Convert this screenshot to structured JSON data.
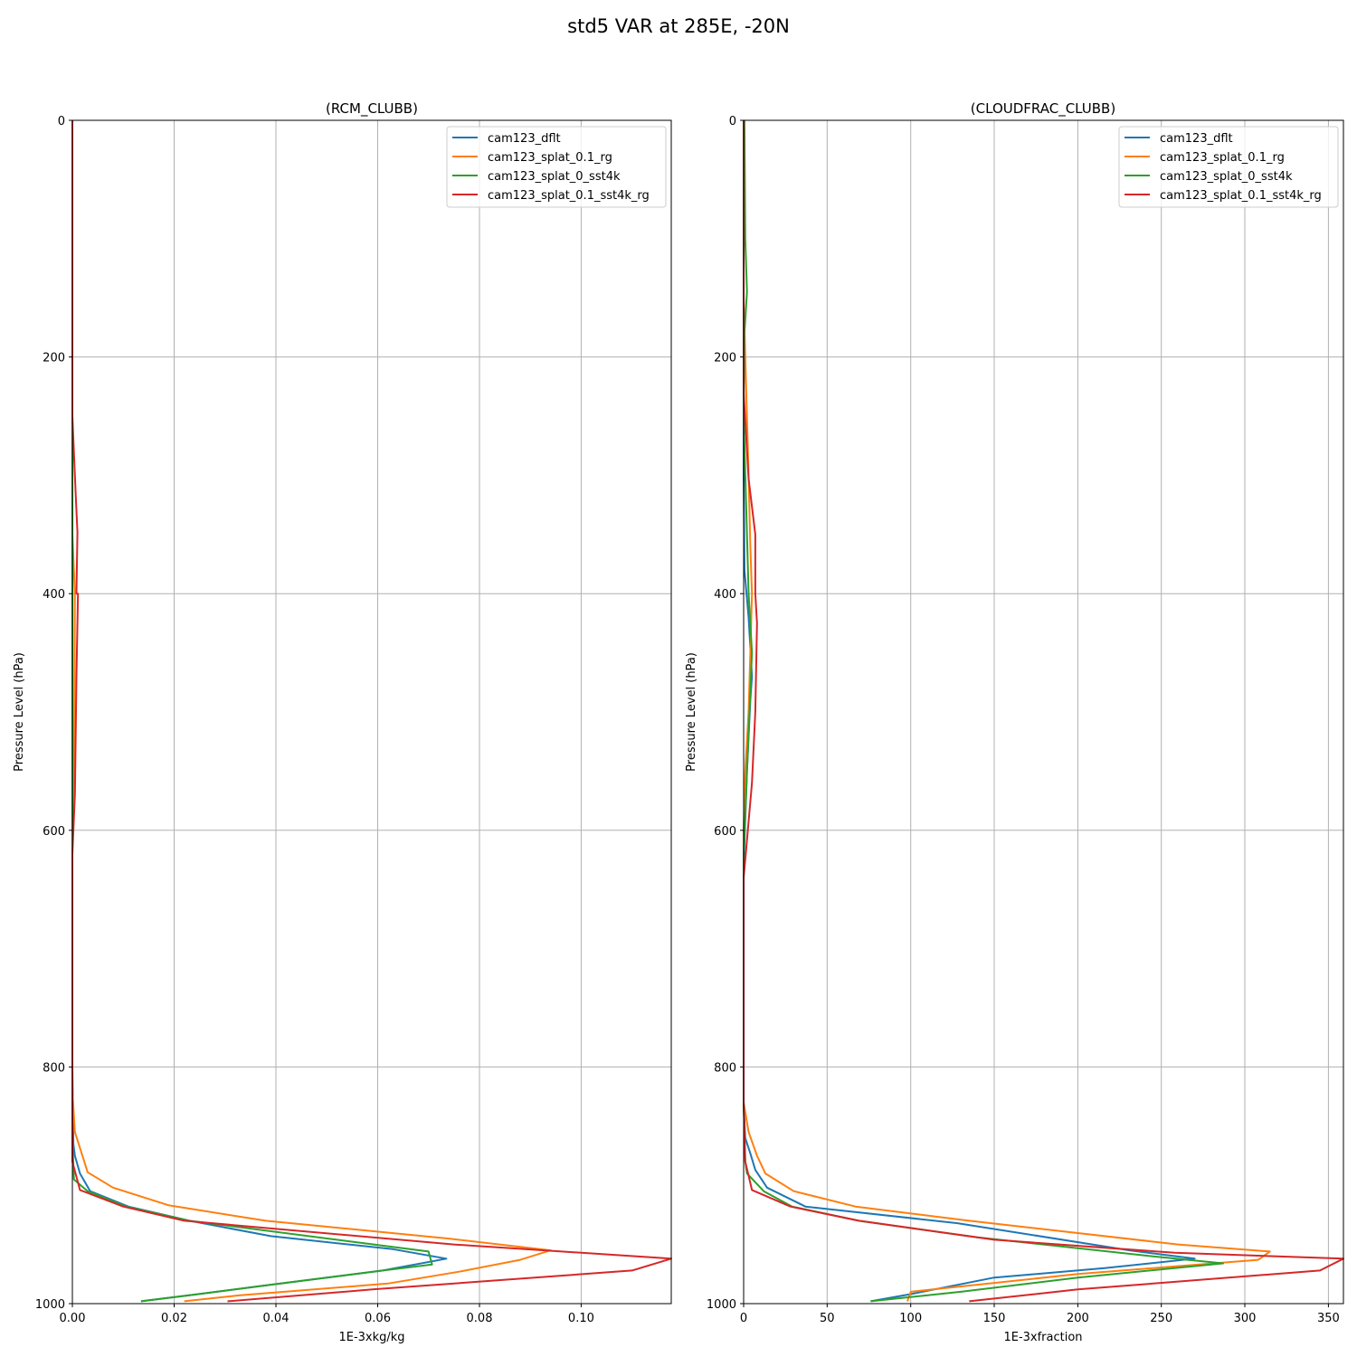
{
  "suptitle": "std5 VAR at 285E, -20N",
  "colors": {
    "cam123_dflt": "#1f77b4",
    "cam123_splat_0.1_rg": "#ff7f0e",
    "cam123_splat_0_sst4k": "#2ca02c",
    "cam123_splat_0.1_sst4k_rg": "#d62728",
    "grid": "#b0b0b0"
  },
  "chart_data": [
    {
      "type": "line",
      "title": "(RCM_CLUBB)",
      "xlabel": "1E-3xkg/kg",
      "ylabel": "Pressure Level (hPa)",
      "xlim": [
        0,
        0.1177
      ],
      "ylim": [
        1000,
        0
      ],
      "xticks": [
        0,
        0.02,
        0.04,
        0.06,
        0.08,
        0.1
      ],
      "xtick_labels": [
        "0.00",
        "0.02",
        "0.04",
        "0.06",
        "0.08",
        "0.10"
      ],
      "yticks": [
        0,
        200,
        400,
        600,
        800,
        1000
      ],
      "ytick_labels": [
        "0",
        "200",
        "400",
        "600",
        "800",
        "1000"
      ],
      "grid": true,
      "legend_position": "top-right",
      "series": [
        {
          "name": "cam123_dflt",
          "x": [
            0,
            0,
            0,
            0,
            0,
            0.0002,
            0.0005,
            0.0015,
            0.0035,
            0.011,
            0.023,
            0.039,
            0.063,
            0.0735,
            0.061,
            0.039,
            0.023,
            0.0135
          ],
          "y": [
            0,
            200,
            400,
            600,
            800,
            865,
            875,
            890,
            905,
            918,
            930,
            943,
            954,
            962,
            972,
            984,
            993,
            998
          ]
        },
        {
          "name": "cam123_splat_0.1_rg",
          "x": [
            0,
            0,
            0,
            0.0005,
            0.0003,
            0,
            0,
            0.0005,
            0.003,
            0.008,
            0.019,
            0.038,
            0.074,
            0.094,
            0.088,
            0.076,
            0.062,
            0.033,
            0.022
          ],
          "y": [
            0,
            200,
            350,
            400,
            570,
            600,
            820,
            855,
            889,
            902,
            917,
            930,
            945,
            955,
            963,
            973,
            983,
            993,
            998
          ]
        },
        {
          "name": "cam123_splat_0_sst4k",
          "x": [
            0,
            0,
            0,
            0,
            0,
            0,
            0.0003,
            0.003,
            0.0105,
            0.023,
            0.07,
            0.0707,
            0.061,
            0.039,
            0.023,
            0.0135
          ],
          "y": [
            0,
            200,
            400,
            600,
            800,
            860,
            895,
            905,
            918,
            930,
            956,
            967,
            972,
            984,
            993,
            998
          ]
        },
        {
          "name": "cam123_splat_0.1_sst4k_rg",
          "x": [
            0,
            0,
            0.0007,
            0.001,
            0.0008,
            0.0011,
            0.0008,
            0.0005,
            0,
            0,
            0.0015,
            0.01,
            0.022,
            0.075,
            0.1177,
            0.11,
            0.059,
            0.0305
          ],
          "y": [
            0,
            250,
            320,
            348,
            400,
            400,
            470,
            570,
            620,
            880,
            904,
            918,
            930,
            950,
            962,
            972,
            988,
            998
          ]
        }
      ]
    },
    {
      "type": "line",
      "title": "(CLOUDFRAC_CLUBB)",
      "xlabel": "1E-3xfraction",
      "ylabel": "Pressure Level (hPa)",
      "xlim": [
        0,
        359
      ],
      "ylim": [
        1000,
        0
      ],
      "xticks": [
        0,
        50,
        100,
        150,
        200,
        250,
        300,
        350
      ],
      "xtick_labels": [
        "0",
        "50",
        "100",
        "150",
        "200",
        "250",
        "300",
        "350"
      ],
      "yticks": [
        0,
        200,
        400,
        600,
        800,
        1000
      ],
      "ytick_labels": [
        "0",
        "200",
        "400",
        "600",
        "800",
        "1000"
      ],
      "grid": true,
      "legend_position": "top-right",
      "series": [
        {
          "name": "cam123_dflt",
          "x": [
            0,
            0,
            0,
            0,
            0.5,
            3,
            5,
            4,
            2,
            0,
            0,
            1,
            4,
            7,
            14,
            37,
            128,
            231,
            270,
            216,
            150,
            100,
            76
          ],
          "y": [
            0,
            150,
            200,
            300,
            380,
            420,
            470,
            490,
            550,
            630,
            830,
            860,
            873,
            887,
            902,
            918,
            932,
            955,
            962,
            970,
            978,
            992,
            998
          ]
        },
        {
          "name": "cam123_splat_0.1_rg",
          "x": [
            0,
            0,
            1,
            3,
            4,
            5,
            4,
            3,
            1,
            0,
            0,
            3,
            8,
            13,
            30,
            67,
            135,
            260,
            315,
            308,
            200,
            100,
            98
          ],
          "y": [
            0,
            150,
            200,
            300,
            360,
            400,
            450,
            500,
            550,
            600,
            830,
            855,
            875,
            890,
            905,
            918,
            930,
            950,
            956,
            963,
            975,
            990,
            998
          ]
        },
        {
          "name": "cam123_splat_0_sst4k",
          "x": [
            0.5,
            1,
            2,
            0.5,
            0,
            2,
            3,
            5,
            2,
            0,
            0,
            1,
            2,
            12,
            29,
            69,
            140,
            245,
            287,
            200,
            130,
            76
          ],
          "y": [
            0,
            100,
            145,
            180,
            250,
            350,
            400,
            450,
            550,
            620,
            830,
            880,
            890,
            905,
            918,
            930,
            944,
            960,
            966,
            978,
            990,
            998
          ]
        },
        {
          "name": "cam123_splat_0.1_sst4k_rg",
          "x": [
            0,
            0,
            0,
            3,
            7,
            7,
            8,
            7,
            5,
            1,
            0,
            0,
            1,
            5,
            28,
            69,
            150,
            258,
            359,
            345,
            200,
            135
          ],
          "y": [
            0,
            200,
            230,
            303,
            350,
            400,
            425,
            500,
            560,
            625,
            640,
            830,
            880,
            904,
            918,
            930,
            946,
            957,
            962,
            972,
            988,
            998
          ]
        }
      ]
    }
  ]
}
